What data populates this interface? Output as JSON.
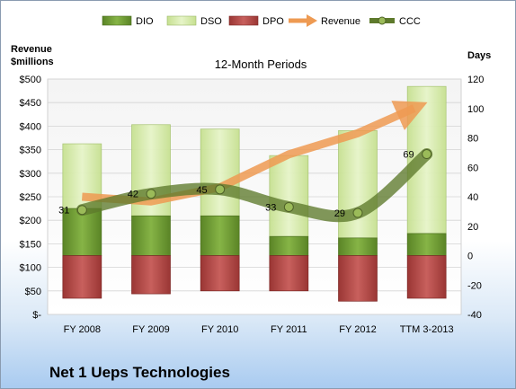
{
  "company": "Net 1 Ueps Technologies",
  "chart_data": {
    "type": "bar",
    "title": "12-Month Periods",
    "left_axis_title": [
      "Revenue",
      "$millions"
    ],
    "right_axis_title": "Days",
    "categories": [
      "FY 2008",
      "FY 2009",
      "FY 2010",
      "FY 2011",
      "FY 2012",
      "TTM 3-2013"
    ],
    "left_ylim": [
      0,
      500
    ],
    "left_ticks": [
      0,
      50,
      100,
      150,
      200,
      250,
      300,
      350,
      400,
      450,
      500
    ],
    "left_tick_labels": [
      "$-",
      "$50",
      "$100",
      "$150",
      "$200",
      "$250",
      "$300",
      "$350",
      "$400",
      "$450",
      "$500"
    ],
    "right_ylim": [
      -40,
      120
    ],
    "right_ticks": [
      -40,
      -20,
      0,
      20,
      40,
      60,
      80,
      100,
      120
    ],
    "grid": true,
    "legend": "top",
    "legend_items": [
      "DIO",
      "DSO",
      "DPO",
      "Revenue",
      "CCC"
    ],
    "series": [
      {
        "name": "DIO",
        "axis": "right",
        "values": [
          32,
          27,
          27,
          13,
          12,
          15
        ],
        "color": "#6f9a30"
      },
      {
        "name": "DSO",
        "axis": "right",
        "values": [
          44,
          62,
          59,
          55,
          73,
          100
        ],
        "color": "#d2e8a3"
      },
      {
        "name": "DPO",
        "axis": "right",
        "values": [
          -29,
          -26,
          -24,
          -24,
          -31,
          -29
        ],
        "color": "#b44e4c"
      },
      {
        "name": "Revenue",
        "axis": "left",
        "values": [
          250,
          240,
          270,
          340,
          385,
          438
        ],
        "color": "#ee9a52"
      },
      {
        "name": "CCC",
        "axis": "right",
        "values": [
          31,
          42,
          45,
          33,
          29,
          69
        ],
        "color": "#5e7a2c",
        "labels": [
          "31",
          "42",
          "45",
          "33",
          "29",
          "69"
        ]
      }
    ]
  }
}
